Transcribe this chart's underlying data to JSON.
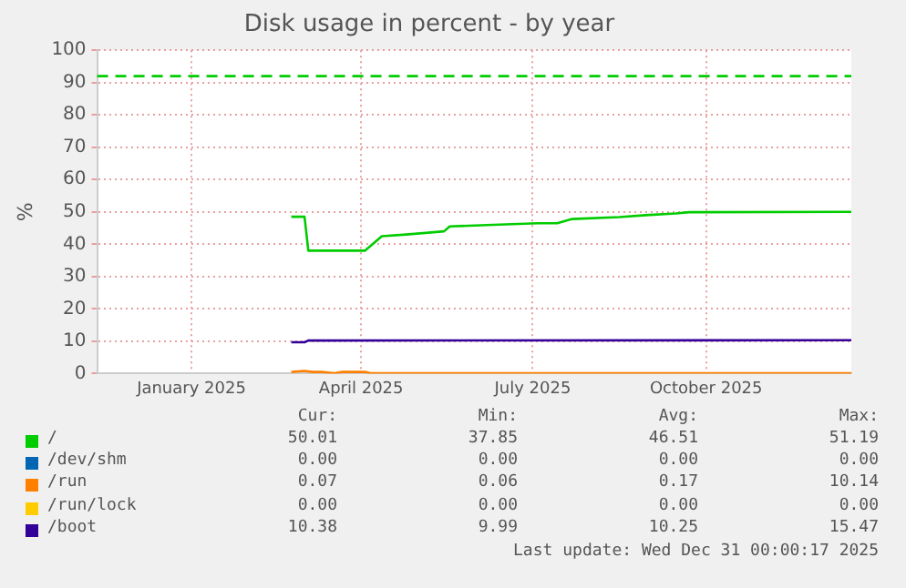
{
  "chart_data": {
    "type": "line",
    "title": "Disk usage in percent - by year",
    "ylabel": "%",
    "xlim": [
      "2024-11-26",
      "2025-12-31"
    ],
    "xticks": [
      {
        "value": "2025-01-15",
        "label": "January 2025"
      },
      {
        "value": "2025-04-15",
        "label": "April 2025"
      },
      {
        "value": "2025-07-15",
        "label": "July 2025"
      },
      {
        "value": "2025-10-15",
        "label": "October 2025"
      }
    ],
    "ylim": [
      0,
      100
    ],
    "yticks": [
      0,
      10,
      20,
      30,
      40,
      50,
      60,
      70,
      80,
      90,
      100
    ],
    "grid": true,
    "legend": "bottom",
    "marker": "none",
    "line_style": "solid",
    "series": [
      {
        "name": "/",
        "color": "#00cc00",
        "x": [
          "2025-03-09",
          "2025-03-16",
          "2025-03-18",
          "2025-04-17",
          "2025-04-26",
          "2025-05-09",
          "2025-05-29",
          "2025-06-01",
          "2025-06-24",
          "2025-07-18",
          "2025-07-28",
          "2025-08-05",
          "2025-08-30",
          "2025-09-13",
          "2025-09-29",
          "2025-10-06",
          "2025-12-31"
        ],
        "values": [
          48.5,
          48.5,
          38,
          38,
          42.5,
          43,
          44,
          45.5,
          46,
          46.5,
          46.5,
          47.8,
          48.4,
          49,
          49.5,
          49.9,
          50
        ]
      },
      {
        "name": "/dev/shm",
        "color": "#0066b3"
      },
      {
        "name": "/run",
        "color": "#ff8000",
        "x": [
          "2025-03-09",
          "2025-03-16",
          "2025-03-20",
          "2025-03-25",
          "2025-04-01",
          "2025-04-05",
          "2025-04-17",
          "2025-04-20",
          "2025-12-31"
        ],
        "values": [
          0.5,
          0.8,
          0.5,
          0.5,
          0.1,
          0.5,
          0.5,
          0.1,
          0.1
        ]
      },
      {
        "name": "/run/lock",
        "color": "#ffcc00"
      },
      {
        "name": "/boot",
        "color": "#330099",
        "x": [
          "2025-03-09",
          "2025-03-16",
          "2025-03-18",
          "2025-12-31"
        ],
        "values": [
          9.7,
          9.7,
          10.2,
          10.3
        ]
      }
    ],
    "ref_lines": [
      {
        "axis": "y",
        "value": 92,
        "color": "#00cc00",
        "line_style": "dashed"
      }
    ],
    "annotations": [
      "Cur:",
      "Min:",
      "Avg:",
      "Max:",
      "50.01",
      "37.85",
      "46.51",
      "51.19",
      "0.00",
      "0.00",
      "0.00",
      "0.00",
      "0.07",
      "0.06",
      "0.17",
      "10.14",
      "0.00",
      "0.00",
      "0.00",
      "0.00",
      "10.38",
      "9.99",
      "10.25",
      "15.47",
      "Last update: Wed Dec 31 00:00:17 2025"
    ]
  }
}
